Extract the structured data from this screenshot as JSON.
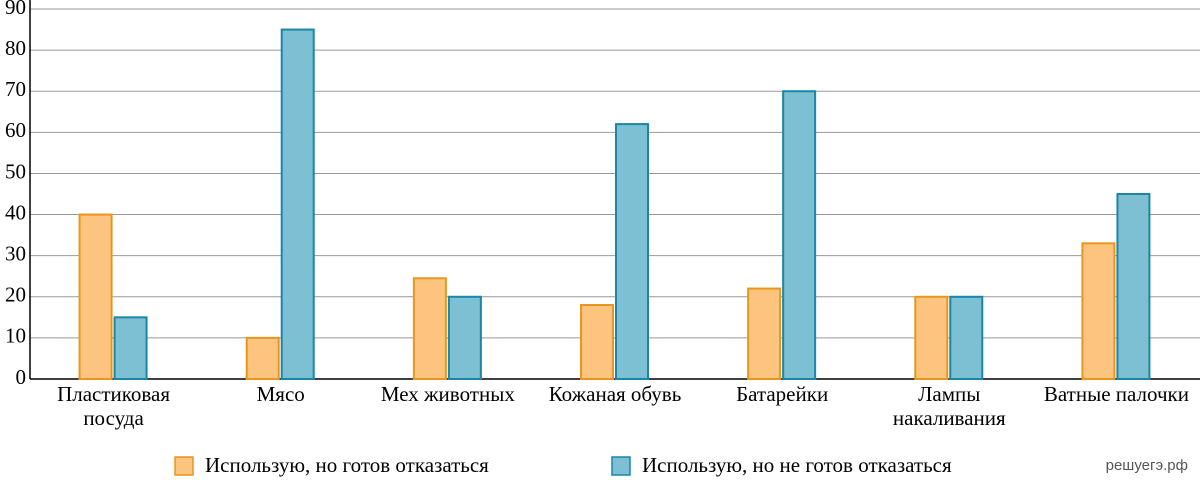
{
  "chart_data": {
    "type": "bar",
    "categories": [
      "Пластиковая посуда",
      "Мясо",
      "Мех животных",
      "Кожаная обувь",
      "Батарейки",
      "Лампы накаливания",
      "Ватные палочки"
    ],
    "series": [
      {
        "name": "Использую, но готов отказаться",
        "color": "#fdc47f",
        "stroke": "#e8961e",
        "values": [
          40,
          10,
          24.5,
          18,
          22,
          20,
          33
        ]
      },
      {
        "name": "Использую, но не готов отказаться",
        "color": "#7dbfd3",
        "stroke": "#1a86a8",
        "values": [
          15,
          85,
          20,
          62,
          70,
          20,
          45
        ]
      }
    ],
    "ylim": [
      0,
      90
    ],
    "yticks": [
      0,
      10,
      20,
      30,
      40,
      50,
      60,
      70,
      80,
      90
    ],
    "grid": true,
    "watermark": "решуегэ.рф"
  }
}
